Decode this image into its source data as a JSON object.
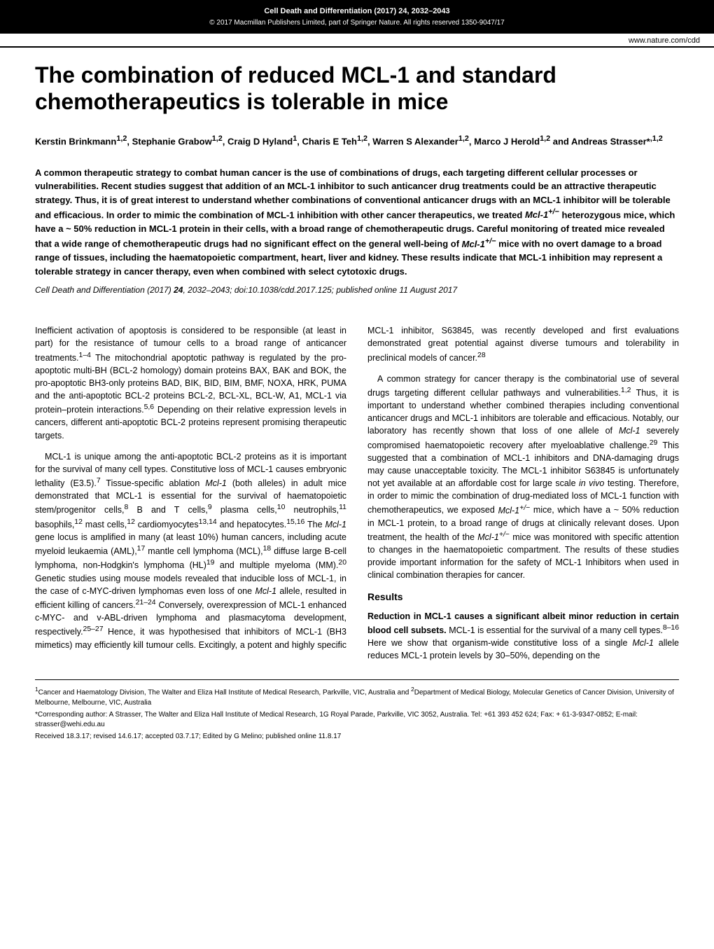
{
  "header": {
    "journal_info": "Cell Death and Differentiation (2017) 24, 2032–2043",
    "copyright": "© 2017 Macmillan Publishers Limited, part of Springer Nature. All rights reserved 1350-9047/17",
    "website": "www.nature.com/cdd"
  },
  "title": "The combination of reduced MCL-1 and standard chemotherapeutics is tolerable in mice",
  "authors_html": "Kerstin Brinkmann<sup>1,2</sup>, Stephanie Grabow<sup>1,2</sup>, Craig D Hyland<sup>1</sup>, Charis E Teh<sup>1,2</sup>, Warren S Alexander<sup>1,2</sup>, Marco J Herold<sup>1,2</sup> and Andreas Strasser*<sup>,1,2</sup>",
  "abstract_html": "A common therapeutic strategy to combat human cancer is the use of combinations of drugs, each targeting different cellular processes or vulnerabilities. Recent studies suggest that addition of an MCL-1 inhibitor to such anticancer drug treatments could be an attractive therapeutic strategy. Thus, it is of great interest to understand whether combinations of conventional anticancer drugs with an MCL-1 inhibitor will be tolerable and efficacious. In order to mimic the combination of MCL-1 inhibition with other cancer therapeutics, we treated <span class=\"italic\">Mcl-1<sup>+/−</sup></span> heterozygous mice, which have a ~ 50% reduction in MCL-1 protein in their cells, with a broad range of chemotherapeutic drugs. Careful monitoring of treated mice revealed that a wide range of chemotherapeutic drugs had no significant effect on the general well-being of <span class=\"italic\">Mcl-1<sup>+/−</sup></span> mice with no overt damage to a broad range of tissues, including the haematopoietic compartment, heart, liver and kidney. These results indicate that MCL-1 inhibition may represent a tolerable strategy in cancer therapy, even when combined with select cytotoxic drugs.",
  "citation_html": "<span class=\"italic\">Cell Death and Differentiation</span> (2017) <b>24</b>, 2032–2043; doi:10.1038/cdd.2017.125; published online 11 August 2017",
  "body": {
    "p1_html": "Inefficient activation of apoptosis is considered to be responsible (at least in part) for the resistance of tumour cells to a broad range of anticancer treatments.<sup>1–4</sup> The mitochondrial apoptotic pathway is regulated by the pro-apoptotic multi-BH (BCL-2 homology) domain proteins BAX, BAK and BOK, the pro-apoptotic BH3-only proteins BAD, BIK, BID, BIM, BMF, NOXA, HRK, PUMA and the anti-apoptotic BCL-2 proteins BCL-2, BCL-XL, BCL-W, A1, MCL-1 via protein–protein interactions.<sup>5,6</sup> Depending on their relative expression levels in cancers, different anti-apoptotic BCL-2 proteins represent promising therapeutic targets.",
    "p2_html": "MCL-1 is unique among the anti-apoptotic BCL-2 proteins as it is important for the survival of many cell types. Constitutive loss of MCL-1 causes embryonic lethality (E3.5).<sup>7</sup> Tissue-specific ablation <span class=\"italic\">Mcl-1</span> (both alleles) in adult mice demonstrated that MCL-1 is essential for the survival of haematopoietic stem/progenitor cells,<sup>8</sup> B and T cells,<sup>9</sup> plasma cells,<sup>10</sup> neutrophils,<sup>11</sup> basophils,<sup>12</sup> mast cells,<sup>12</sup> cardiomyocytes<sup>13,14</sup> and hepatocytes.<sup>15,16</sup> The <span class=\"italic\">Mcl-1</span> gene locus is amplified in many (at least 10%) human cancers, including acute myeloid leukaemia (AML),<sup>17</sup> mantle cell lymphoma (MCL),<sup>18</sup> diffuse large B-cell lymphoma, non-Hodgkin's lymphoma (HL)<sup>19</sup> and multiple myeloma (MM).<sup>20</sup> Genetic studies using mouse models revealed that inducible loss of MCL-1, in the case of c-MYC-driven lymphomas even loss of one <span class=\"italic\">Mcl-1</span> allele, resulted in efficient killing of cancers.<sup>21–24</sup> Conversely, overexpression of MCL-1 enhanced c-MYC- and v-ABL-driven lymphoma and plasmacytoma development, respectively.<sup>25–27</sup> Hence, it was hypothesised that inhibitors of MCL-1 (BH3 mimetics) may efficiently kill tumour cells. Excitingly, a potent and highly specific MCL-1 inhibitor, S63845, was recently developed and first evaluations demonstrated great potential against diverse tumours and tolerability in preclinical models of cancer.<sup>28</sup>",
    "p3_html": "A common strategy for cancer therapy is the combinatorial use of several drugs targeting different cellular pathways and vulnerabilities.<sup>1,2</sup> Thus, it is important to understand whether combined therapies including conventional anticancer drugs and MCL-1 inhibitors are tolerable and efficacious. Notably, our laboratory has recently shown that loss of one allele of <span class=\"italic\">Mcl-1</span> severely compromised haematopoietic recovery after myeloablative challenge.<sup>29</sup> This suggested that a combination of MCL-1 inhibitors and DNA-damaging drugs may cause unacceptable toxicity. The MCL-1 inhibitor S63845 is unfortunately not yet available at an affordable cost for large scale <span class=\"italic\">in vivo</span> testing. Therefore, in order to mimic the combination of drug-mediated loss of MCL-1 function with chemotherapeutics, we exposed <span class=\"italic\">Mcl-1<sup>+/−</sup></span> mice, which have a ~ 50% reduction in MCL-1 protein, to a broad range of drugs at clinically relevant doses. Upon treatment, the health of the <span class=\"italic\">Mcl-1<sup>+/−</sup></span> mice was monitored with specific attention to changes in the haematopoietic compartment. The results of these studies provide important information for the safety of MCL-1 Inhibitors when used in clinical combination therapies for cancer.",
    "results_head": "Results",
    "results_sub_html": "<span class=\"subhead\">Reduction in MCL-1 causes a significant albeit minor reduction in certain blood cell subsets.</span> MCL-1 is essential for the survival of a many cell types.<sup>8–16</sup> Here we show that organism-wide constitutive loss of a single <span class=\"italic\">Mcl-1</span> allele reduces MCL-1 protein levels by 30–50%, depending on the"
  },
  "affiliations": {
    "aff1_html": "<sup>1</sup>Cancer and Haematology Division, The Walter and Eliza Hall Institute of Medical Research, Parkville, VIC, Australia and <sup>2</sup>Department of Medical Biology, Molecular Genetics of Cancer Division, University of Melbourne, Melbourne, VIC, Australia",
    "corresponding": "*Corresponding author: A Strasser, The Walter and Eliza Hall Institute of Medical Research, 1G Royal Parade, Parkville, VIC 3052, Australia. Tel: +61 393 452 624; Fax: + 61-3-9347-0852; E-mail: strasser@wehi.edu.au",
    "received": "Received 18.3.17; revised 14.6.17; accepted 03.7.17; Edited by G Melino; published online 11.8.17"
  }
}
